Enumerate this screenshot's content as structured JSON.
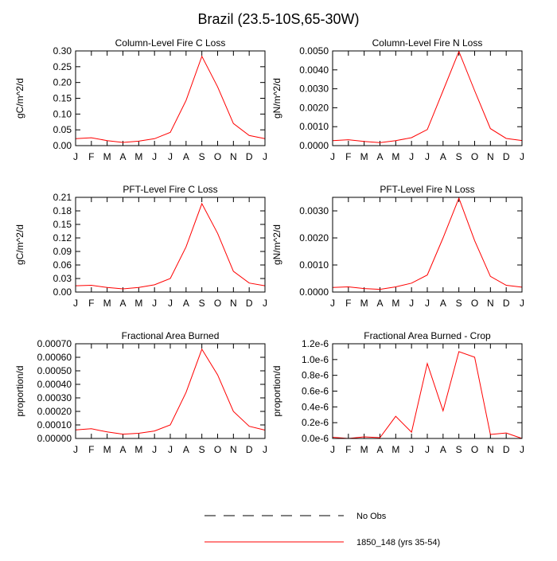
{
  "title": "Brazil (23.5-10S,65-30W)",
  "months": [
    "J",
    "F",
    "M",
    "A",
    "M",
    "J",
    "J",
    "A",
    "S",
    "O",
    "N",
    "D",
    "J"
  ],
  "legend": [
    {
      "label": "No Obs",
      "style": "dashed",
      "color": "#000000"
    },
    {
      "label": "1850_148 (yrs 35-54)",
      "style": "solid",
      "color": "#ff0000"
    }
  ],
  "line_color": "#ff0000",
  "chart_data": [
    {
      "type": "line",
      "title": "Column-Level Fire C Loss",
      "ylabel": "gC/m^2/d",
      "ylim": [
        0,
        0.3
      ],
      "yticks": [
        0,
        0.05,
        0.1,
        0.15,
        0.2,
        0.25,
        0.3
      ],
      "ytick_labels": [
        "0.00",
        "0.05",
        "0.10",
        "0.15",
        "0.20",
        "0.25",
        "0.30"
      ],
      "series": [
        {
          "values": [
            0.022,
            0.025,
            0.016,
            0.01,
            0.014,
            0.022,
            0.042,
            0.143,
            0.283,
            0.186,
            0.07,
            0.032,
            0.022
          ]
        }
      ]
    },
    {
      "type": "line",
      "title": "Column-Level Fire N Loss",
      "ylabel": "gN/m^2/d",
      "ylim": [
        0,
        0.005
      ],
      "yticks": [
        0,
        0.001,
        0.002,
        0.003,
        0.004,
        0.005
      ],
      "ytick_labels": [
        "0.0000",
        "0.0010",
        "0.0020",
        "0.0030",
        "0.0040",
        "0.0050"
      ],
      "series": [
        {
          "values": [
            0.00026,
            0.00031,
            0.00022,
            0.00016,
            0.00026,
            0.00042,
            0.00085,
            0.0029,
            0.00497,
            0.0029,
            0.0009,
            0.00038,
            0.00027
          ]
        }
      ]
    },
    {
      "type": "line",
      "title": "PFT-Level Fire C Loss",
      "ylabel": "gC/m^2/d",
      "ylim": [
        0,
        0.21
      ],
      "yticks": [
        0,
        0.03,
        0.06,
        0.09,
        0.12,
        0.15,
        0.18,
        0.21
      ],
      "ytick_labels": [
        "0.00",
        "0.03",
        "0.06",
        "0.09",
        "0.12",
        "0.15",
        "0.18",
        "0.21"
      ],
      "series": [
        {
          "values": [
            0.014,
            0.015,
            0.01,
            0.007,
            0.01,
            0.016,
            0.03,
            0.1,
            0.196,
            0.13,
            0.046,
            0.02,
            0.014
          ]
        }
      ]
    },
    {
      "type": "line",
      "title": "PFT-Level Fire N Loss",
      "ylabel": "gN/m^2/d",
      "ylim": [
        0,
        0.0035
      ],
      "yticks": [
        0,
        0.001,
        0.002,
        0.003
      ],
      "ytick_labels": [
        "0.0000",
        "0.0010",
        "0.0020",
        "0.0030"
      ],
      "series": [
        {
          "values": [
            0.00017,
            0.00019,
            0.00013,
            0.0001,
            0.00019,
            0.00033,
            0.00063,
            0.002,
            0.00347,
            0.0019,
            0.00058,
            0.00025,
            0.00018
          ]
        }
      ]
    },
    {
      "type": "line",
      "title": "Fractional Area Burned",
      "ylabel": "proportion/d",
      "ylim": [
        0,
        0.0007
      ],
      "yticks": [
        0,
        0.0001,
        0.0002,
        0.0003,
        0.0004,
        0.0005,
        0.0006,
        0.0007
      ],
      "ytick_labels": [
        "0.00000",
        "0.00010",
        "0.00020",
        "0.00030",
        "0.00040",
        "0.00050",
        "0.00060",
        "0.00070"
      ],
      "series": [
        {
          "values": [
            6.3e-05,
            7.2e-05,
            4.8e-05,
            3.2e-05,
            3.8e-05,
            5.5e-05,
            0.0001,
            0.00034,
            0.00066,
            0.00047,
            0.0002,
            9e-05,
            6.2e-05
          ]
        }
      ]
    },
    {
      "type": "line",
      "title": "Fractional Area Burned - Crop",
      "ylabel": "proportion/d",
      "ylim": [
        0,
        1.2e-06
      ],
      "yticks": [
        0,
        2e-07,
        4e-07,
        6e-07,
        8e-07,
        1e-06,
        1.2e-06
      ],
      "ytick_labels": [
        "0.0e-6",
        "0.2e-6",
        "0.4e-6",
        "0.6e-6",
        "0.8e-6",
        "1.0e-6",
        "1.2e-6"
      ],
      "series": [
        {
          "values": [
            1.5e-08,
            0,
            2e-08,
            1e-08,
            2.8e-07,
            8e-08,
            9.5e-07,
            3.5e-07,
            1.1e-06,
            1.03e-06,
            5e-08,
            7e-08,
            0
          ]
        }
      ]
    }
  ]
}
